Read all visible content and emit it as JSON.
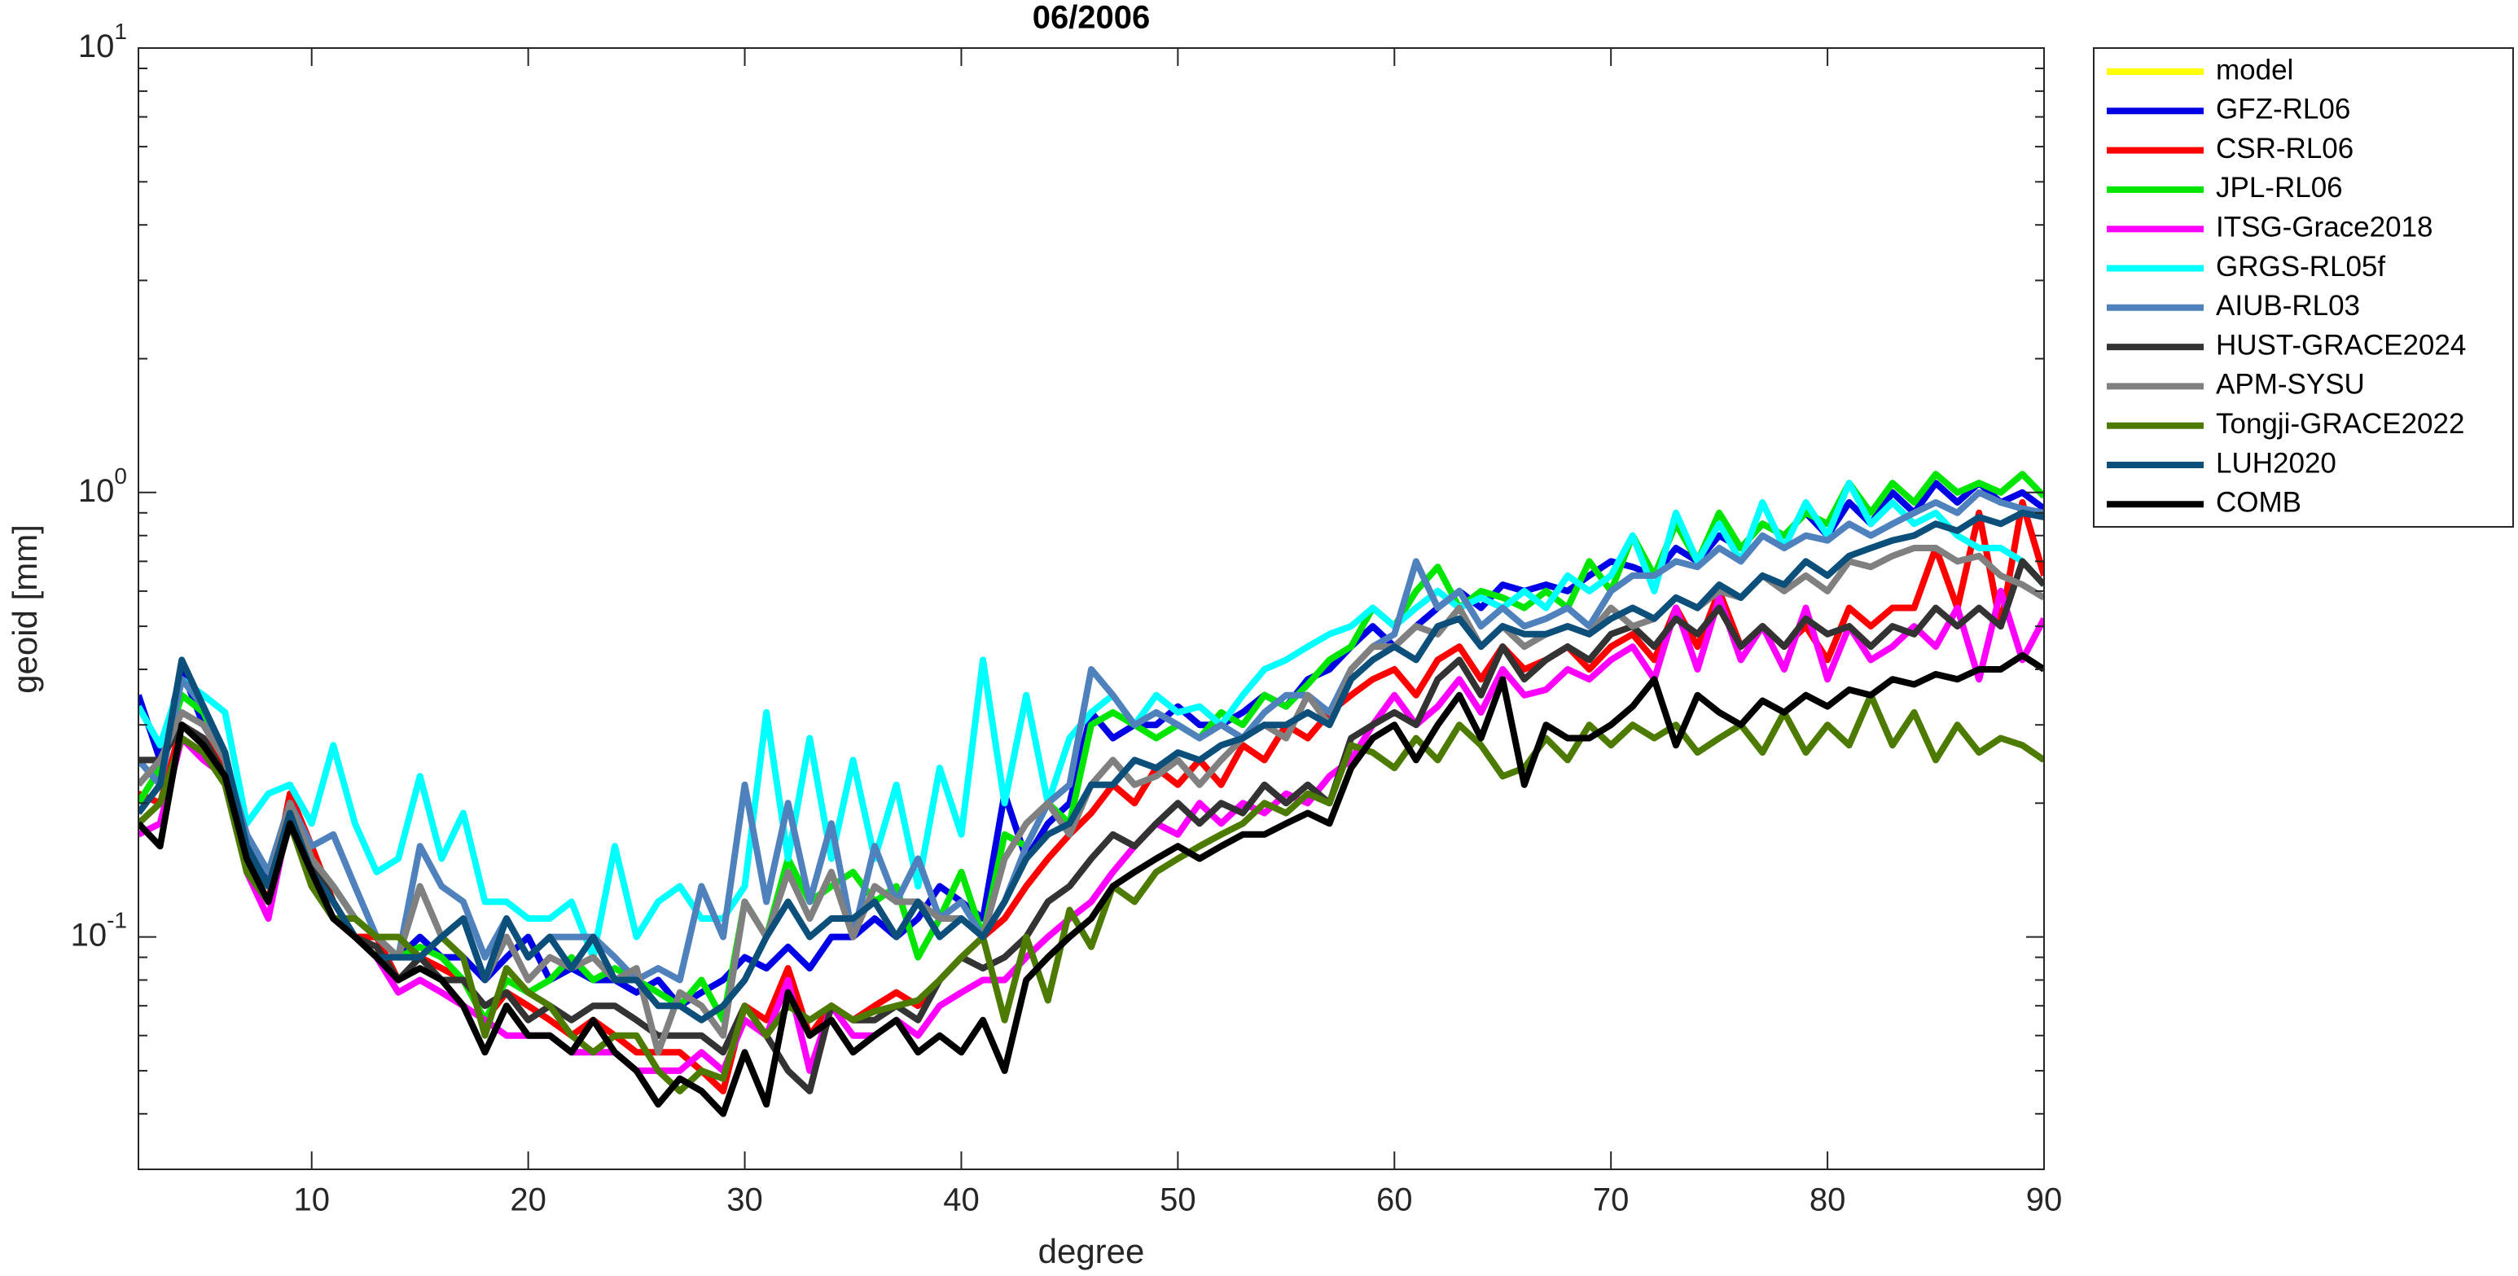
{
  "chart_data": {
    "type": "line",
    "title": "06/2006",
    "xlabel": "degree",
    "ylabel": "geoid [mm]",
    "log_y": true,
    "grid": false,
    "legend": "outside-northeast",
    "xlim": [
      2,
      90
    ],
    "xticks": [
      10,
      20,
      30,
      40,
      50,
      60,
      70,
      80,
      90
    ],
    "ylim": [
      0.03,
      10
    ],
    "yticks": [
      {
        "value": 0.1,
        "label": "10^-1"
      },
      {
        "value": 1,
        "label": "10^0"
      },
      {
        "value": 10,
        "label": "10^1"
      }
    ],
    "yminorticks": [
      0.04,
      0.05,
      0.06,
      0.07,
      0.08,
      0.09,
      0.2,
      0.3,
      0.4,
      0.5,
      0.6,
      0.7,
      0.8,
      0.9,
      2,
      3,
      4,
      5,
      6,
      7,
      8,
      9
    ],
    "x": [
      2,
      3,
      4,
      5,
      6,
      7,
      8,
      9,
      10,
      11,
      12,
      13,
      14,
      15,
      16,
      17,
      18,
      19,
      20,
      21,
      22,
      23,
      24,
      25,
      26,
      27,
      28,
      29,
      30,
      31,
      32,
      33,
      34,
      35,
      36,
      37,
      38,
      39,
      40,
      41,
      42,
      43,
      44,
      45,
      46,
      47,
      48,
      49,
      50,
      51,
      52,
      53,
      54,
      55,
      56,
      57,
      58,
      59,
      60,
      61,
      62,
      63,
      64,
      65,
      66,
      67,
      68,
      69,
      70,
      71,
      72,
      73,
      74,
      75,
      76,
      77,
      78,
      79,
      80,
      81,
      82,
      83,
      84,
      85,
      86,
      87,
      88,
      89,
      90
    ],
    "series": [
      {
        "name": "model",
        "color": "#ffff00",
        "values": [
          null,
          null,
          null,
          null,
          null,
          null,
          null,
          null,
          null,
          null,
          null,
          null,
          null,
          null,
          null,
          null,
          null,
          null,
          null,
          null,
          null,
          null,
          null,
          null,
          null,
          null,
          null,
          null,
          null,
          null,
          null,
          null,
          null,
          null,
          null,
          null,
          null,
          null,
          null,
          null,
          null,
          null,
          null,
          null,
          null,
          null,
          null,
          null,
          null,
          null,
          null,
          null,
          null,
          null,
          null,
          null,
          null,
          null,
          null,
          null,
          null,
          null,
          null,
          null,
          null,
          null,
          null,
          null,
          null,
          null,
          null,
          null,
          null,
          null,
          null,
          null,
          null,
          null,
          null,
          null,
          null,
          null,
          null,
          null,
          null,
          null,
          null,
          null,
          null
        ]
      },
      {
        "name": "GFZ-RL06",
        "color": "#0000e6",
        "values": [
          0.35,
          0.25,
          0.4,
          0.3,
          0.25,
          0.17,
          0.13,
          0.2,
          0.15,
          0.13,
          0.11,
          0.1,
          0.09,
          0.1,
          0.09,
          0.09,
          0.08,
          0.09,
          0.1,
          0.08,
          0.085,
          0.08,
          0.08,
          0.075,
          0.08,
          0.07,
          0.075,
          0.08,
          0.09,
          0.085,
          0.095,
          0.085,
          0.1,
          0.1,
          0.11,
          0.1,
          0.11,
          0.13,
          0.12,
          0.11,
          0.21,
          0.15,
          0.18,
          0.2,
          0.32,
          0.28,
          0.3,
          0.3,
          0.33,
          0.3,
          0.3,
          0.32,
          0.35,
          0.33,
          0.38,
          0.4,
          0.45,
          0.5,
          0.45,
          0.5,
          0.55,
          0.6,
          0.55,
          0.62,
          0.6,
          0.62,
          0.6,
          0.65,
          0.7,
          0.68,
          0.65,
          0.75,
          0.7,
          0.8,
          0.75,
          0.85,
          0.8,
          0.9,
          0.8,
          0.95,
          0.85,
          1.0,
          0.9,
          1.05,
          0.95,
          1.05,
          0.95,
          1.0,
          0.92
        ]
      },
      {
        "name": "CSR-RL06",
        "color": "#ff0000",
        "values": [
          0.21,
          0.2,
          0.3,
          0.28,
          0.24,
          0.15,
          0.12,
          0.21,
          0.16,
          0.12,
          0.1,
          0.1,
          0.08,
          0.09,
          0.085,
          0.08,
          0.065,
          0.075,
          0.07,
          0.065,
          0.06,
          0.065,
          0.06,
          0.055,
          0.055,
          0.055,
          0.05,
          0.045,
          0.07,
          0.065,
          0.085,
          0.06,
          0.07,
          0.065,
          0.07,
          0.075,
          0.07,
          0.08,
          0.09,
          0.1,
          0.11,
          0.13,
          0.15,
          0.17,
          0.19,
          0.22,
          0.2,
          0.24,
          0.22,
          0.25,
          0.22,
          0.27,
          0.25,
          0.3,
          0.28,
          0.32,
          0.35,
          0.38,
          0.4,
          0.35,
          0.42,
          0.45,
          0.38,
          0.45,
          0.4,
          0.42,
          0.45,
          0.4,
          0.45,
          0.48,
          0.42,
          0.55,
          0.45,
          0.6,
          0.45,
          0.5,
          0.45,
          0.5,
          0.42,
          0.55,
          0.5,
          0.55,
          0.55,
          0.75,
          0.55,
          0.9,
          0.5,
          0.95,
          0.65
        ]
      },
      {
        "name": "JPL-RL06",
        "color": "#00e600",
        "values": [
          0.2,
          0.24,
          0.35,
          0.32,
          0.25,
          0.16,
          0.13,
          0.2,
          0.15,
          0.13,
          0.11,
          0.1,
          0.09,
          0.095,
          0.09,
          0.08,
          0.065,
          0.08,
          0.075,
          0.08,
          0.09,
          0.08,
          0.085,
          0.08,
          0.075,
          0.07,
          0.08,
          0.065,
          0.12,
          0.1,
          0.15,
          0.12,
          0.13,
          0.14,
          0.12,
          0.13,
          0.09,
          0.11,
          0.14,
          0.1,
          0.17,
          0.16,
          0.2,
          0.18,
          0.3,
          0.32,
          0.3,
          0.28,
          0.3,
          0.28,
          0.32,
          0.3,
          0.35,
          0.33,
          0.37,
          0.42,
          0.45,
          0.55,
          0.5,
          0.6,
          0.68,
          0.55,
          0.6,
          0.58,
          0.55,
          0.6,
          0.55,
          0.7,
          0.6,
          0.8,
          0.65,
          0.85,
          0.7,
          0.9,
          0.75,
          0.85,
          0.8,
          0.9,
          0.85,
          1.05,
          0.9,
          1.05,
          0.95,
          1.1,
          1.0,
          1.05,
          1.0,
          1.1,
          0.98
        ]
      },
      {
        "name": "ITSG-Grace2018",
        "color": "#ff00ff",
        "values": [
          0.17,
          0.18,
          0.28,
          0.25,
          0.23,
          0.14,
          0.11,
          0.19,
          0.14,
          0.11,
          0.1,
          0.09,
          0.075,
          0.08,
          0.075,
          0.07,
          0.065,
          0.06,
          0.06,
          0.06,
          0.055,
          0.055,
          0.055,
          0.05,
          0.05,
          0.05,
          0.055,
          0.05,
          0.065,
          0.06,
          0.08,
          0.05,
          0.07,
          0.06,
          0.06,
          0.065,
          0.06,
          0.07,
          0.075,
          0.08,
          0.08,
          0.09,
          0.1,
          0.11,
          0.12,
          0.14,
          0.16,
          0.18,
          0.17,
          0.2,
          0.18,
          0.2,
          0.19,
          0.21,
          0.2,
          0.23,
          0.25,
          0.3,
          0.35,
          0.3,
          0.33,
          0.38,
          0.32,
          0.4,
          0.35,
          0.36,
          0.4,
          0.38,
          0.42,
          0.45,
          0.38,
          0.55,
          0.4,
          0.58,
          0.42,
          0.5,
          0.4,
          0.55,
          0.38,
          0.5,
          0.42,
          0.45,
          0.5,
          0.45,
          0.55,
          0.38,
          0.6,
          0.42,
          0.52
        ]
      },
      {
        "name": "GRGS-RL05f",
        "color": "#00ffff",
        "values": [
          0.33,
          0.27,
          0.38,
          0.35,
          0.32,
          0.18,
          0.21,
          0.22,
          0.18,
          0.27,
          0.18,
          0.14,
          0.15,
          0.23,
          0.15,
          0.19,
          0.12,
          0.12,
          0.11,
          0.11,
          0.12,
          0.09,
          0.16,
          0.1,
          0.12,
          0.13,
          0.11,
          0.11,
          0.13,
          0.32,
          0.15,
          0.28,
          0.15,
          0.25,
          0.15,
          0.22,
          0.13,
          0.24,
          0.17,
          0.42,
          0.2,
          0.35,
          0.2,
          0.28,
          0.32,
          0.35,
          0.3,
          0.35,
          0.32,
          0.33,
          0.3,
          0.35,
          0.4,
          0.42,
          0.45,
          0.48,
          0.5,
          0.55,
          0.5,
          0.55,
          0.6,
          0.55,
          0.58,
          0.55,
          0.6,
          0.55,
          0.65,
          0.6,
          0.65,
          0.8,
          0.6,
          0.9,
          0.7,
          0.85,
          0.7,
          0.95,
          0.75,
          0.95,
          0.8,
          1.05,
          0.85,
          0.95,
          0.85,
          0.9,
          0.8,
          0.75,
          0.75,
          0.7,
          0.62
        ]
      },
      {
        "name": "AIUB-RL03",
        "color": "#4f81bd",
        "values": [
          0.25,
          0.22,
          0.38,
          0.33,
          0.25,
          0.17,
          0.14,
          0.2,
          0.16,
          0.17,
          0.13,
          0.1,
          0.09,
          0.16,
          0.13,
          0.12,
          0.09,
          0.11,
          0.09,
          0.1,
          0.1,
          0.1,
          0.09,
          0.08,
          0.085,
          0.08,
          0.13,
          0.1,
          0.22,
          0.12,
          0.2,
          0.12,
          0.18,
          0.1,
          0.16,
          0.12,
          0.15,
          0.11,
          0.12,
          0.1,
          0.12,
          0.16,
          0.2,
          0.22,
          0.4,
          0.35,
          0.3,
          0.32,
          0.3,
          0.28,
          0.3,
          0.28,
          0.32,
          0.35,
          0.35,
          0.32,
          0.4,
          0.45,
          0.48,
          0.7,
          0.55,
          0.6,
          0.5,
          0.55,
          0.5,
          0.52,
          0.55,
          0.5,
          0.6,
          0.65,
          0.65,
          0.7,
          0.68,
          0.75,
          0.7,
          0.8,
          0.75,
          0.8,
          0.78,
          0.85,
          0.8,
          0.85,
          0.9,
          0.95,
          0.9,
          1.0,
          0.95,
          0.92,
          0.9
        ]
      },
      {
        "name": "HUST-GRACE2024",
        "color": "#333333",
        "values": [
          0.25,
          0.25,
          0.3,
          0.28,
          0.23,
          0.15,
          0.13,
          0.19,
          0.15,
          0.12,
          0.1,
          0.095,
          0.08,
          0.09,
          0.08,
          0.08,
          0.07,
          0.075,
          0.065,
          0.07,
          0.065,
          0.07,
          0.07,
          0.065,
          0.06,
          0.06,
          0.06,
          0.055,
          0.07,
          0.06,
          0.05,
          0.045,
          0.07,
          0.065,
          0.065,
          0.07,
          0.065,
          0.08,
          0.09,
          0.085,
          0.09,
          0.1,
          0.12,
          0.13,
          0.15,
          0.17,
          0.16,
          0.18,
          0.2,
          0.18,
          0.2,
          0.19,
          0.22,
          0.2,
          0.22,
          0.2,
          0.28,
          0.3,
          0.32,
          0.3,
          0.38,
          0.42,
          0.35,
          0.45,
          0.38,
          0.42,
          0.45,
          0.42,
          0.48,
          0.5,
          0.45,
          0.52,
          0.48,
          0.55,
          0.45,
          0.5,
          0.45,
          0.52,
          0.48,
          0.5,
          0.45,
          0.5,
          0.48,
          0.55,
          0.5,
          0.55,
          0.5,
          0.7,
          0.62
        ]
      },
      {
        "name": "APM-SYSU",
        "color": "#808080",
        "values": [
          0.22,
          0.25,
          0.32,
          0.3,
          0.25,
          0.16,
          0.13,
          0.2,
          0.15,
          0.13,
          0.11,
          0.1,
          0.09,
          0.13,
          0.1,
          0.11,
          0.08,
          0.1,
          0.08,
          0.09,
          0.085,
          0.09,
          0.08,
          0.085,
          0.055,
          0.075,
          0.07,
          0.06,
          0.12,
          0.1,
          0.14,
          0.11,
          0.14,
          0.1,
          0.13,
          0.12,
          0.12,
          0.11,
          0.11,
          0.1,
          0.15,
          0.18,
          0.2,
          0.17,
          0.22,
          0.25,
          0.22,
          0.23,
          0.25,
          0.22,
          0.25,
          0.28,
          0.3,
          0.28,
          0.35,
          0.3,
          0.4,
          0.45,
          0.45,
          0.5,
          0.48,
          0.55,
          0.45,
          0.5,
          0.45,
          0.48,
          0.5,
          0.48,
          0.55,
          0.5,
          0.52,
          0.58,
          0.55,
          0.6,
          0.58,
          0.65,
          0.6,
          0.65,
          0.6,
          0.7,
          0.68,
          0.72,
          0.75,
          0.75,
          0.7,
          0.72,
          0.65,
          0.62,
          0.58
        ]
      },
      {
        "name": "Tongji-GRACE2022",
        "color": "#4d7a00",
        "values": [
          0.18,
          0.2,
          0.28,
          0.26,
          0.22,
          0.14,
          0.12,
          0.18,
          0.13,
          0.11,
          0.11,
          0.1,
          0.1,
          0.09,
          0.1,
          0.09,
          0.06,
          0.085,
          0.075,
          0.07,
          0.06,
          0.055,
          0.06,
          0.06,
          0.05,
          0.045,
          0.05,
          0.048,
          0.07,
          0.06,
          0.07,
          0.065,
          0.07,
          0.065,
          0.068,
          0.07,
          0.072,
          0.08,
          0.09,
          0.1,
          0.065,
          0.1,
          0.072,
          0.115,
          0.095,
          0.13,
          0.12,
          0.14,
          0.15,
          0.16,
          0.17,
          0.18,
          0.2,
          0.19,
          0.21,
          0.2,
          0.27,
          0.26,
          0.24,
          0.28,
          0.25,
          0.3,
          0.27,
          0.23,
          0.24,
          0.28,
          0.25,
          0.3,
          0.27,
          0.3,
          0.28,
          0.3,
          0.26,
          0.28,
          0.3,
          0.26,
          0.32,
          0.26,
          0.3,
          0.27,
          0.35,
          0.27,
          0.32,
          0.25,
          0.3,
          0.26,
          0.28,
          0.27,
          0.25
        ]
      },
      {
        "name": "LUH2020",
        "color": "#0b4f7a",
        "values": [
          0.19,
          0.22,
          0.42,
          0.33,
          0.26,
          0.16,
          0.13,
          0.19,
          0.14,
          0.12,
          0.1,
          0.09,
          0.09,
          0.09,
          0.1,
          0.11,
          0.08,
          0.11,
          0.09,
          0.1,
          0.085,
          0.1,
          0.08,
          0.08,
          0.07,
          0.07,
          0.065,
          0.07,
          0.08,
          0.1,
          0.12,
          0.1,
          0.11,
          0.11,
          0.12,
          0.1,
          0.12,
          0.1,
          0.11,
          0.1,
          0.12,
          0.15,
          0.17,
          0.18,
          0.22,
          0.22,
          0.25,
          0.24,
          0.26,
          0.25,
          0.27,
          0.28,
          0.3,
          0.3,
          0.32,
          0.3,
          0.38,
          0.42,
          0.45,
          0.42,
          0.5,
          0.52,
          0.45,
          0.5,
          0.48,
          0.48,
          0.5,
          0.48,
          0.52,
          0.55,
          0.52,
          0.58,
          0.55,
          0.62,
          0.58,
          0.65,
          0.62,
          0.7,
          0.65,
          0.72,
          0.75,
          0.78,
          0.8,
          0.85,
          0.82,
          0.88,
          0.85,
          0.9,
          0.88
        ]
      },
      {
        "name": "COMB",
        "color": "#000000",
        "values": [
          0.18,
          0.16,
          0.3,
          0.27,
          0.23,
          0.15,
          0.12,
          0.18,
          0.14,
          0.11,
          0.1,
          0.09,
          0.08,
          0.085,
          0.08,
          0.07,
          0.055,
          0.07,
          0.06,
          0.06,
          0.055,
          0.065,
          0.055,
          0.05,
          0.042,
          0.048,
          0.045,
          0.04,
          0.055,
          0.042,
          0.075,
          0.06,
          0.065,
          0.055,
          0.06,
          0.065,
          0.055,
          0.06,
          0.055,
          0.065,
          0.05,
          0.08,
          0.09,
          0.1,
          0.11,
          0.13,
          0.14,
          0.15,
          0.16,
          0.15,
          0.16,
          0.17,
          0.17,
          0.18,
          0.19,
          0.18,
          0.24,
          0.28,
          0.3,
          0.25,
          0.3,
          0.35,
          0.28,
          0.38,
          0.22,
          0.3,
          0.28,
          0.28,
          0.3,
          0.33,
          0.38,
          0.27,
          0.35,
          0.32,
          0.3,
          0.34,
          0.32,
          0.35,
          0.33,
          0.36,
          0.35,
          0.38,
          0.37,
          0.39,
          0.38,
          0.4,
          0.4,
          0.43,
          0.4
        ]
      }
    ]
  }
}
